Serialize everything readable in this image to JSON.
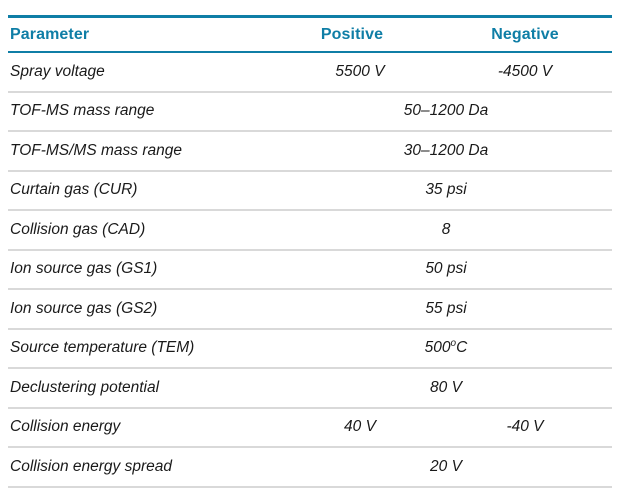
{
  "table": {
    "headers": [
      {
        "label": "Parameter"
      },
      {
        "label": "Positive"
      },
      {
        "label": "Negative"
      }
    ],
    "rows": [
      {
        "parameter": "Spray voltage",
        "span": false,
        "positive": "5500 V",
        "negative": "-4500 V"
      },
      {
        "parameter": "TOF-MS mass range",
        "span": true,
        "value": "50–1200 Da"
      },
      {
        "parameter": "TOF-MS/MS mass range",
        "span": true,
        "value": "30–1200 Da"
      },
      {
        "parameter": "Curtain gas (CUR)",
        "span": true,
        "value": "35 psi"
      },
      {
        "parameter": "Collision gas (CAD)",
        "span": true,
        "value": "8"
      },
      {
        "parameter": "Ion source gas (GS1)",
        "span": true,
        "value": "50 psi"
      },
      {
        "parameter": "Ion source gas (GS2)",
        "span": true,
        "value": "55 psi"
      },
      {
        "parameter": "Source temperature (TEM)",
        "span": true,
        "value": "500",
        "value_sup": "o",
        "value_tail": "C"
      },
      {
        "parameter": "Declustering potential",
        "span": true,
        "value": "80 V"
      },
      {
        "parameter": "Collision energy",
        "span": false,
        "positive": "40 V",
        "negative": "-40 V"
      },
      {
        "parameter": "Collision energy spread",
        "span": true,
        "value": "20 V"
      }
    ]
  },
  "colors": {
    "accent": "#0f7ea6",
    "row_divider": "#d9d9d9",
    "text": "#1a1a1a",
    "background": "#ffffff"
  }
}
